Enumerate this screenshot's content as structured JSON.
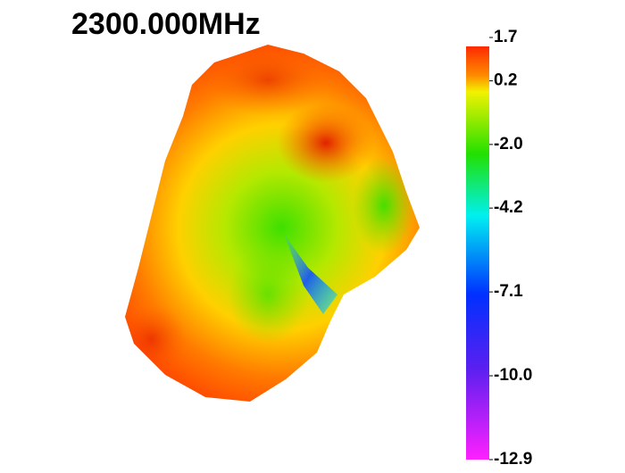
{
  "chart_data": {
    "type": "radiation-pattern",
    "title": "2300.000MHz",
    "colorbar": {
      "lim": [
        -12.9,
        1.7
      ],
      "ticks": [
        1.7,
        0.2,
        {
          "value": -2,
          "label": "-2.0"
        },
        -4.2,
        -7.1,
        {
          "value": -10,
          "label": "-10.0"
        },
        -12.9
      ]
    }
  }
}
